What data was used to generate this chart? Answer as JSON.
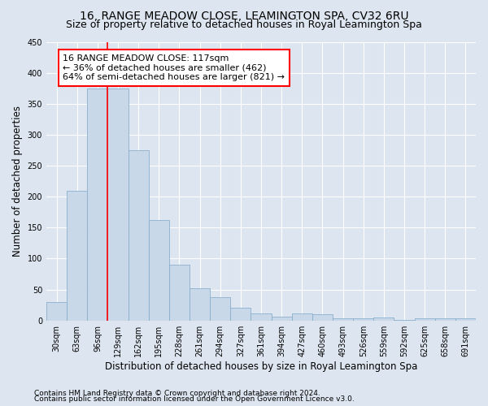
{
  "title": "16, RANGE MEADOW CLOSE, LEAMINGTON SPA, CV32 6RU",
  "subtitle": "Size of property relative to detached houses in Royal Leamington Spa",
  "xlabel": "Distribution of detached houses by size in Royal Leamington Spa",
  "ylabel": "Number of detached properties",
  "footnote1": "Contains HM Land Registry data © Crown copyright and database right 2024.",
  "footnote2": "Contains public sector information licensed under the Open Government Licence v3.0.",
  "bar_labels": [
    "30sqm",
    "63sqm",
    "96sqm",
    "129sqm",
    "162sqm",
    "195sqm",
    "228sqm",
    "261sqm",
    "294sqm",
    "327sqm",
    "361sqm",
    "394sqm",
    "427sqm",
    "460sqm",
    "493sqm",
    "526sqm",
    "559sqm",
    "592sqm",
    "625sqm",
    "658sqm",
    "691sqm"
  ],
  "bar_values": [
    30,
    210,
    375,
    375,
    275,
    162,
    90,
    52,
    38,
    20,
    11,
    6,
    11,
    10,
    4,
    4,
    5,
    1,
    3,
    3,
    3
  ],
  "bar_color": "#c8d8e8",
  "bar_edge_color": "#7aaan8",
  "vline_color": "red",
  "vline_x": 2.5,
  "annotation_line1": "16 RANGE MEADOW CLOSE: 117sqm",
  "annotation_line2": "← 36% of detached houses are smaller (462)",
  "annotation_line3": "64% of semi-detached houses are larger (821) →",
  "annotation_box_facecolor": "white",
  "annotation_box_edgecolor": "red",
  "ylim": [
    0,
    450
  ],
  "yticks": [
    0,
    50,
    100,
    150,
    200,
    250,
    300,
    350,
    400,
    450
  ],
  "bg_color": "#dde6f0",
  "plot_bg_color": "#dde6f0",
  "grid_color": "white",
  "title_fontsize": 10,
  "subtitle_fontsize": 9,
  "xlabel_fontsize": 8.5,
  "ylabel_fontsize": 8.5,
  "tick_fontsize": 7,
  "annot_fontsize": 8,
  "footnote_fontsize": 6.5
}
